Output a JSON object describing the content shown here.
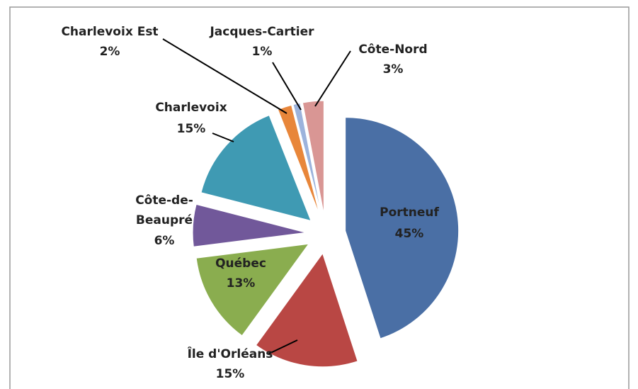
{
  "chart_data": {
    "type": "pie",
    "categories": [
      "Portneuf",
      "Île d'Orléans",
      "Québec",
      "Côte-de-Beaupré",
      "Charlevoix",
      "Charlevoix Est",
      "Jacques-Cartier",
      "Côte-Nord"
    ],
    "values": [
      45,
      15,
      13,
      6,
      15,
      2,
      1,
      3
    ],
    "value_labels": [
      "45%",
      "15%",
      "13%",
      "6%",
      "15%",
      "2%",
      "1%",
      "3%"
    ],
    "colors": [
      "#4a6fa5",
      "#b94744",
      "#8aad4f",
      "#71589a",
      "#3f9ab3",
      "#e8863a",
      "#9cb3dc",
      "#d99694"
    ]
  }
}
